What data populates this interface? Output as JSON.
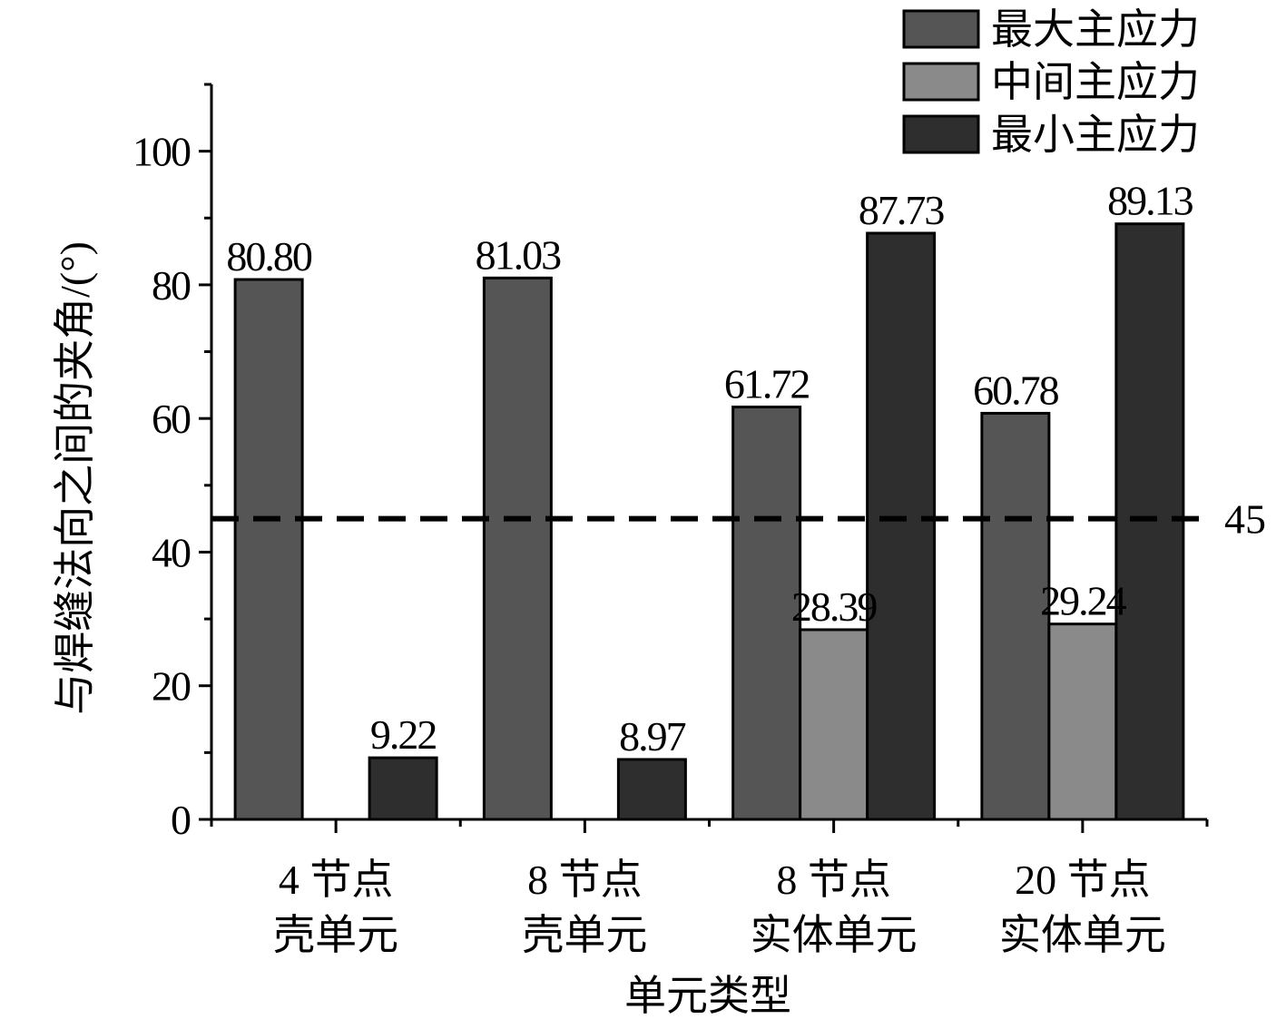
{
  "chart_data": {
    "type": "bar",
    "xlabel": "单元类型",
    "ylabel": "与焊缝法向之间的夹角/(°)",
    "ylim": [
      0,
      110
    ],
    "yticks": [
      0,
      20,
      40,
      60,
      80,
      100
    ],
    "categories": [
      [
        "4 节点",
        "壳单元"
      ],
      [
        "8 节点",
        "壳单元"
      ],
      [
        "8 节点",
        "实体单元"
      ],
      [
        "20 节点",
        "实体单元"
      ]
    ],
    "series": [
      {
        "name": "最大主应力",
        "color": "#555555",
        "values": [
          80.8,
          81.03,
          61.72,
          60.78
        ],
        "labels": [
          "80.80",
          "81.03",
          "61.72",
          "60.78"
        ]
      },
      {
        "name": "中间主应力",
        "color": "#8a8a8a",
        "values": [
          null,
          null,
          28.39,
          29.24
        ],
        "labels": [
          null,
          null,
          "28.39",
          "29.24"
        ]
      },
      {
        "name": "最小主应力",
        "color": "#2e2e2e",
        "values": [
          9.22,
          8.97,
          87.73,
          89.13
        ],
        "labels": [
          "9.22",
          "8.97",
          "87.73",
          "89.13"
        ]
      }
    ],
    "reference_line": {
      "value": 45,
      "label": "45",
      "style": "dashed"
    },
    "legend_position": "top-right",
    "grid": false
  }
}
